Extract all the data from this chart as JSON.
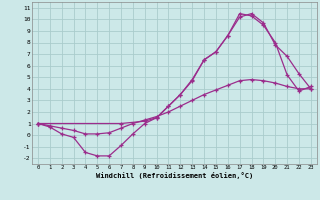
{
  "xlabel": "Windchill (Refroidissement éolien,°C)",
  "xlim": [
    -0.5,
    23.5
  ],
  "ylim": [
    -2.5,
    11.5
  ],
  "xticks": [
    0,
    1,
    2,
    3,
    4,
    5,
    6,
    7,
    8,
    9,
    10,
    11,
    12,
    13,
    14,
    15,
    16,
    17,
    18,
    19,
    20,
    21,
    22,
    23
  ],
  "yticks": [
    -2,
    -1,
    0,
    1,
    2,
    3,
    4,
    5,
    6,
    7,
    8,
    9,
    10,
    11
  ],
  "bg_color": "#cce8e8",
  "line_color": "#9b2d8c",
  "grid_color": "#aacccc",
  "line1_x": [
    0,
    1,
    2,
    3,
    4,
    5,
    6,
    7,
    8,
    9,
    10,
    11,
    12,
    13,
    14,
    15,
    16,
    17,
    18,
    19,
    20,
    21,
    22,
    23
  ],
  "line1_y": [
    1,
    0.7,
    0.1,
    -0.2,
    -1.5,
    -1.8,
    -1.8,
    -0.9,
    0.1,
    1.0,
    1.5,
    2.5,
    3.5,
    4.7,
    6.5,
    7.2,
    8.6,
    10.2,
    10.5,
    9.7,
    7.8,
    6.8,
    5.3,
    4.0
  ],
  "line2_x": [
    0,
    1,
    2,
    3,
    4,
    5,
    6,
    7,
    8,
    9,
    10,
    11,
    12,
    13,
    14,
    15,
    16,
    17,
    18,
    19,
    20,
    21,
    22,
    23
  ],
  "line2_y": [
    1,
    0.8,
    0.6,
    0.4,
    0.1,
    0.1,
    0.2,
    0.6,
    1.0,
    1.3,
    1.6,
    2.0,
    2.5,
    3.0,
    3.5,
    3.9,
    4.3,
    4.7,
    4.8,
    4.7,
    4.5,
    4.2,
    4.0,
    4.0
  ],
  "line3_x": [
    0,
    7,
    9,
    10,
    11,
    12,
    13,
    14,
    15,
    16,
    17,
    18,
    19,
    20,
    21,
    22,
    23
  ],
  "line3_y": [
    1,
    1.0,
    1.2,
    1.5,
    2.5,
    3.5,
    4.8,
    6.5,
    7.2,
    8.6,
    10.5,
    10.3,
    9.5,
    8.0,
    5.2,
    3.8,
    4.2
  ]
}
